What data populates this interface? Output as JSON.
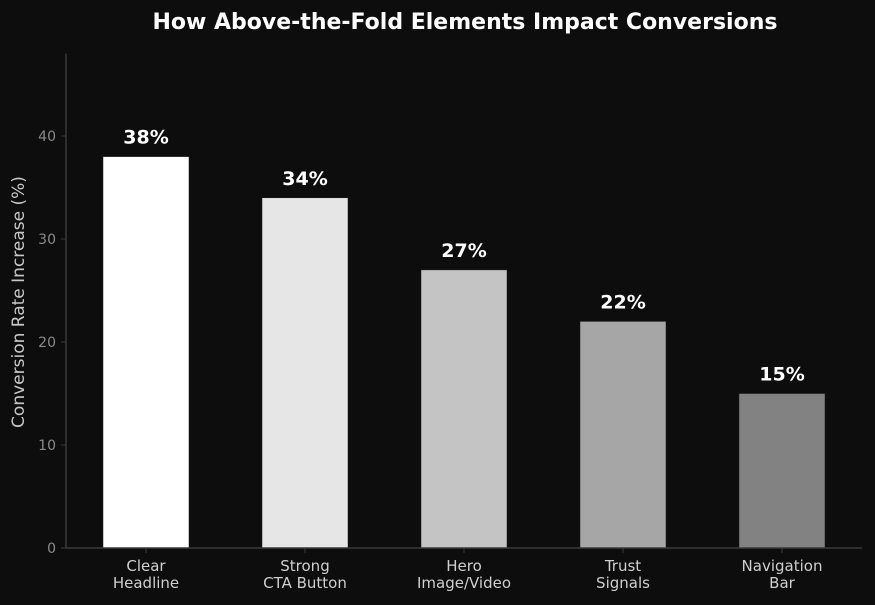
{
  "chart_data": {
    "type": "bar",
    "title": "How Above-the-Fold Elements Impact Conversions",
    "xlabel": "",
    "ylabel": "Conversion Rate Increase (%)",
    "ylim": [
      0,
      48
    ],
    "yticks": [
      0,
      10,
      20,
      30,
      40
    ],
    "grid": false,
    "categories": [
      [
        "Clear",
        "Headline"
      ],
      [
        "Strong",
        "CTA Button"
      ],
      [
        "Hero",
        "Image/Video"
      ],
      [
        "Trust",
        "Signals"
      ],
      [
        "Navigation",
        "Bar"
      ]
    ],
    "values": [
      38,
      34,
      27,
      22,
      15
    ],
    "value_labels": [
      "38%",
      "34%",
      "27%",
      "22%",
      "15%"
    ],
    "bar_colors": [
      "#ffffff",
      "#e6e6e6",
      "#c4c4c4",
      "#a6a6a6",
      "#828282"
    ],
    "background_color": "#0d0d0d"
  }
}
